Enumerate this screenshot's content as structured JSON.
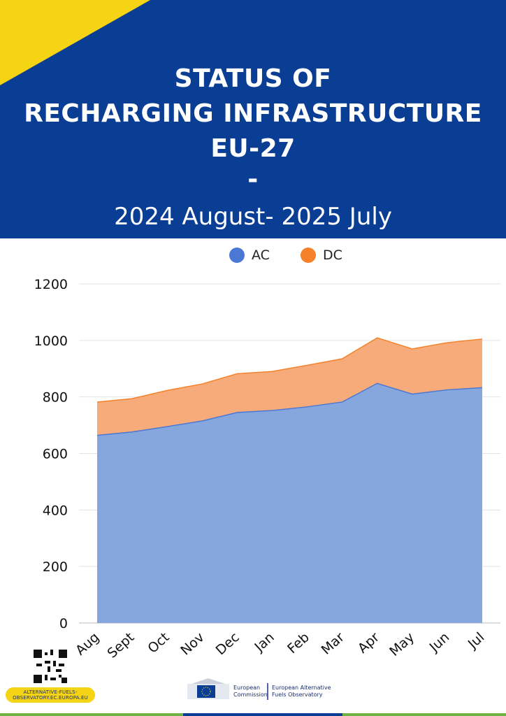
{
  "header": {
    "title_lines": [
      "STATUS OF",
      "RECHARGING INFRASTRUCTURE",
      "EU-27",
      "-"
    ],
    "subtitle": "2024 August- 2025 July"
  },
  "colors": {
    "header_bg": "#0a3d94",
    "accent_yellow": "#f5d416",
    "ac": "#4a78d4",
    "ac_fill": "#85a7dd",
    "dc": "#f5822a",
    "dc_fill": "#f7ab7a"
  },
  "chart_data": {
    "type": "area",
    "stacked": true,
    "categories": [
      "Aug",
      "Sept",
      "Oct",
      "Nov",
      "Dec",
      "Jan",
      "Feb",
      "Mar",
      "Apr",
      "May",
      "Jun",
      "Jul"
    ],
    "series": [
      {
        "name": "AC",
        "values": [
          664,
          676,
          695,
          715,
          745,
          752,
          765,
          782,
          848,
          810,
          825,
          833
        ]
      },
      {
        "name": "DC",
        "values": [
          118,
          118,
          128,
          131,
          137,
          138,
          147,
          153,
          161,
          160,
          167,
          172
        ]
      }
    ],
    "yticks": [
      "0",
      "200",
      "400",
      "600",
      "800",
      "1000",
      "1200"
    ],
    "ylim": [
      0,
      1200
    ],
    "grid": true,
    "legend_position": "top"
  },
  "footer": {
    "url_line1": "ALTERNATIVE-FUELS-",
    "url_line2": "OBSERVATORY.EC.EUROPA.EU",
    "ec_line1": "European",
    "ec_line2": "Commission",
    "eafo_line1": "European Alternative",
    "eafo_line2": "Fuels Observatory"
  }
}
